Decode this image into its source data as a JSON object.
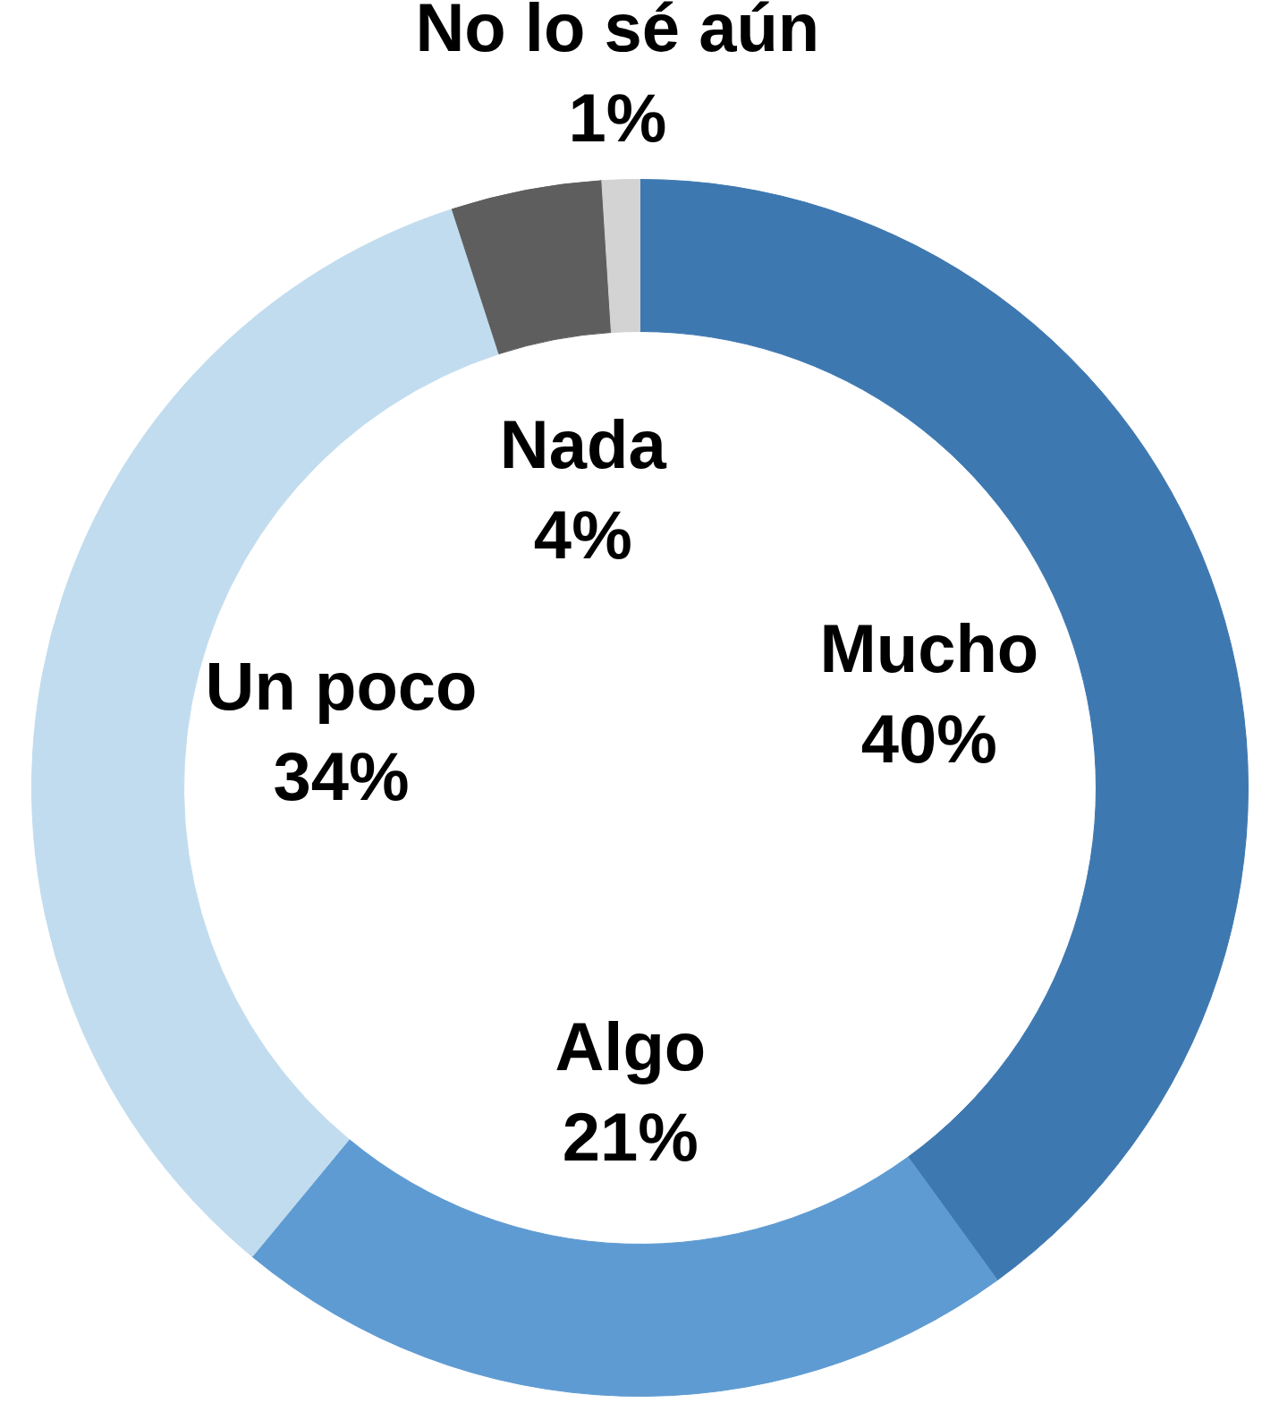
{
  "chart_data": {
    "type": "donut",
    "categories": [
      "Mucho",
      "Algo",
      "Un poco",
      "Nada",
      "No lo sé aún"
    ],
    "values": [
      40,
      21,
      34,
      4,
      1
    ],
    "colors": [
      "#3e78b0",
      "#5e9bd2",
      "#c1dcee",
      "#5e5e5e",
      "#d3d3d3"
    ],
    "value_labels": [
      "40%",
      "21%",
      "34%",
      "4%",
      "1%"
    ]
  }
}
